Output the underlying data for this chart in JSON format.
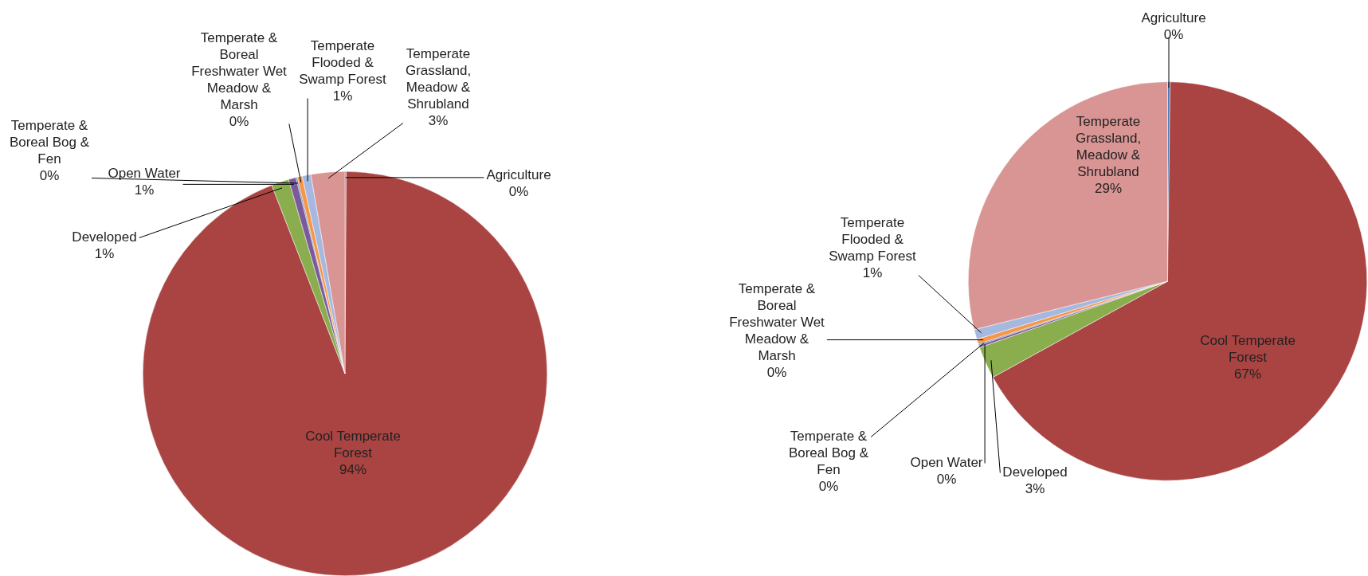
{
  "chart_data": [
    {
      "type": "pie",
      "categories": [
        "Agriculture",
        "Cool Temperate Forest",
        "Developed",
        "Open Water",
        "Temperate & Boreal Bog & Fen",
        "Temperate & Boreal Freshwater Wet Meadow & Marsh",
        "Temperate Flooded & Swamp Forest",
        "Temperate Grassland, Meadow & Shrubland"
      ],
      "values": [
        0.1,
        94.0,
        1.4,
        0.6,
        0.1,
        0.4,
        0.7,
        2.7
      ],
      "value_labels": [
        "0%",
        "94%",
        "1%",
        "1%",
        "0%",
        "0%",
        "1%",
        "3%"
      ],
      "colors": [
        "#4a7ebb",
        "#a94442",
        "#8aad4e",
        "#7a5a9a",
        "#4a7ebb",
        "#f79646",
        "#a5b9e0",
        "#d99594"
      ],
      "legend": false
    },
    {
      "type": "pie",
      "categories": [
        "Agriculture",
        "Cool Temperate Forest",
        "Developed",
        "Open Water",
        "Temperate & Boreal Bog & Fen",
        "Temperate & Boreal Freshwater Wet Meadow & Marsh",
        "Temperate Flooded & Swamp Forest",
        "Temperate Grassland, Meadow & Shrubland"
      ],
      "values": [
        0.2,
        66.8,
        2.6,
        0.2,
        0.1,
        0.4,
        0.8,
        28.9
      ],
      "value_labels": [
        "0%",
        "67%",
        "3%",
        "0%",
        "0%",
        "0%",
        "1%",
        "29%"
      ],
      "colors": [
        "#4a7ebb",
        "#a94442",
        "#8aad4e",
        "#7a5a9a",
        "#4a7ebb",
        "#f79646",
        "#a5b9e0",
        "#d99594"
      ],
      "legend": false
    }
  ]
}
